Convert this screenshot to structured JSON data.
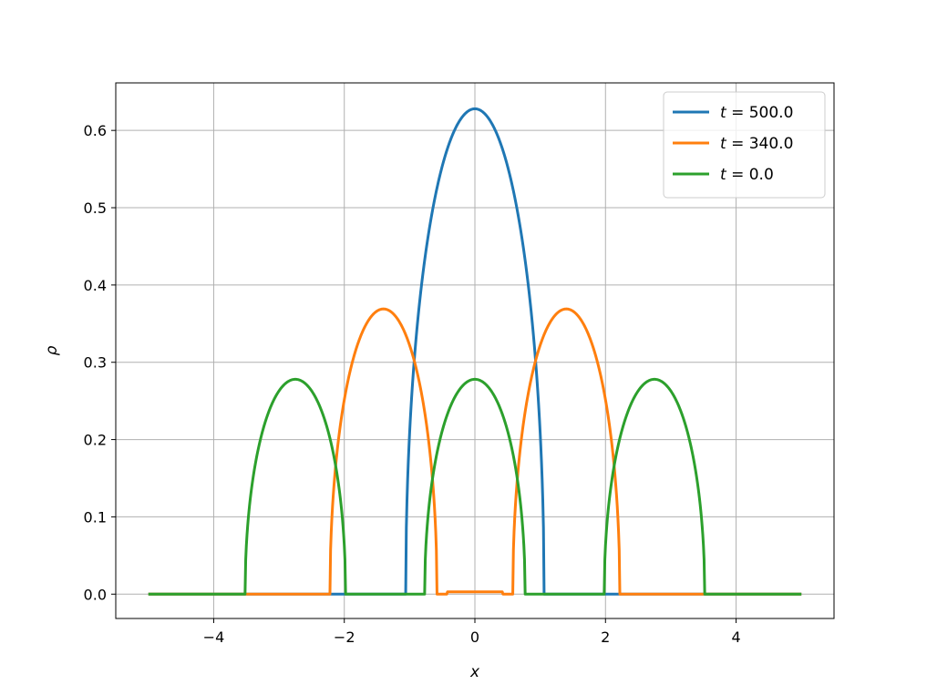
{
  "chart_data": {
    "type": "line",
    "title": "",
    "xlabel": "x",
    "ylabel": "ρ",
    "xlim": [
      -5.5,
      5.5
    ],
    "ylim": [
      -0.0315,
      0.6615
    ],
    "grid": true,
    "legend_position": "top-right",
    "x_ticks": [
      -4,
      -2,
      0,
      2,
      4
    ],
    "x_tick_labels": [
      "−4",
      "−2",
      "0",
      "2",
      "4"
    ],
    "y_ticks": [
      0.0,
      0.1,
      0.2,
      0.3,
      0.4,
      0.5,
      0.6
    ],
    "y_tick_labels": [
      "0.0",
      "0.1",
      "0.2",
      "0.3",
      "0.4",
      "0.5",
      "0.6"
    ],
    "series": [
      {
        "name": "t = 500.0",
        "color": "#1f77b4",
        "bumps": [
          {
            "center": 0.0,
            "half_width": 1.06,
            "peak": 0.628
          }
        ]
      },
      {
        "name": "t = 340.0",
        "color": "#ff7f0e",
        "bumps": [
          {
            "center": -1.4,
            "half_width": 0.82,
            "peak": 0.369
          },
          {
            "center": 1.4,
            "half_width": 0.82,
            "peak": 0.369
          }
        ],
        "floor": {
          "from": -0.42,
          "to": 0.42,
          "value": 0.003
        }
      },
      {
        "name": "t = 0.0",
        "color": "#2ca02c",
        "bumps": [
          {
            "center": -2.75,
            "half_width": 0.77,
            "peak": 0.278
          },
          {
            "center": 0.0,
            "half_width": 0.77,
            "peak": 0.278
          },
          {
            "center": 2.75,
            "half_width": 0.77,
            "peak": 0.278
          }
        ]
      }
    ],
    "x_range": [
      -5.0,
      5.0
    ]
  }
}
